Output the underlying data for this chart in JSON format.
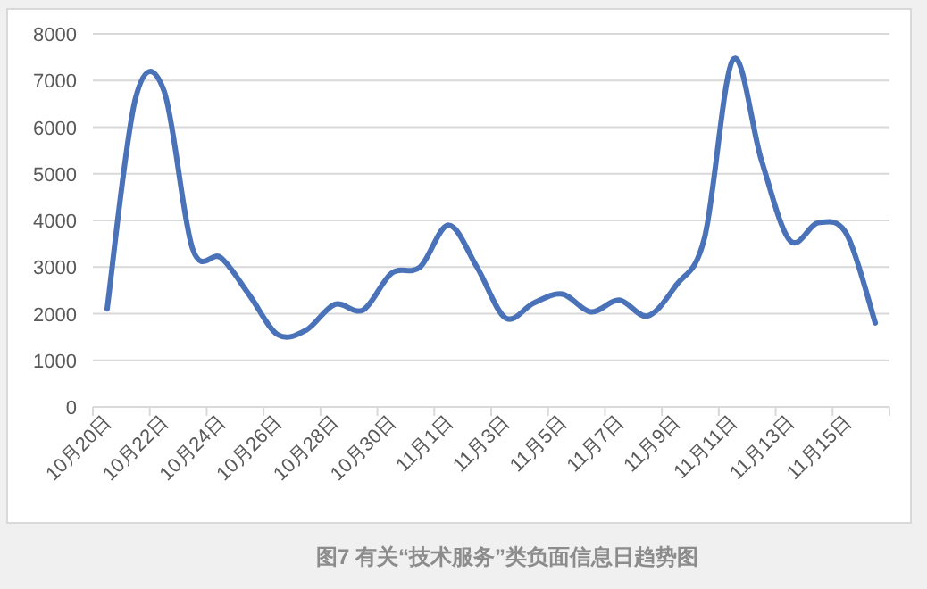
{
  "chart_data": {
    "type": "line",
    "categories": [
      "10月20日",
      null,
      "10月22日",
      null,
      "10月24日",
      null,
      "10月26日",
      null,
      "10月28日",
      null,
      "10月30日",
      null,
      "11月1日",
      null,
      "11月3日",
      null,
      "11月5日",
      null,
      "11月7日",
      null,
      "11月9日",
      null,
      "11月11日",
      null,
      "11月13日",
      null,
      "11月15日",
      null
    ],
    "series": [
      {
        "color": "#4a72b8",
        "values": [
          2100,
          6620,
          6780,
          3400,
          3200,
          2400,
          1550,
          1650,
          2200,
          2080,
          2870,
          3000,
          3900,
          3000,
          1910,
          2230,
          2420,
          2040,
          2290,
          1950,
          2610,
          3630,
          7450,
          5290,
          3570,
          3950,
          3700,
          1800
        ]
      }
    ],
    "ylim": [
      0,
      8000
    ],
    "yticks": [
      0,
      1000,
      2000,
      3000,
      4000,
      5000,
      6000,
      7000,
      8000
    ],
    "grid": "y",
    "annotations": [
      "图7 有关“技术服务”类负面信息日趋势图"
    ]
  }
}
